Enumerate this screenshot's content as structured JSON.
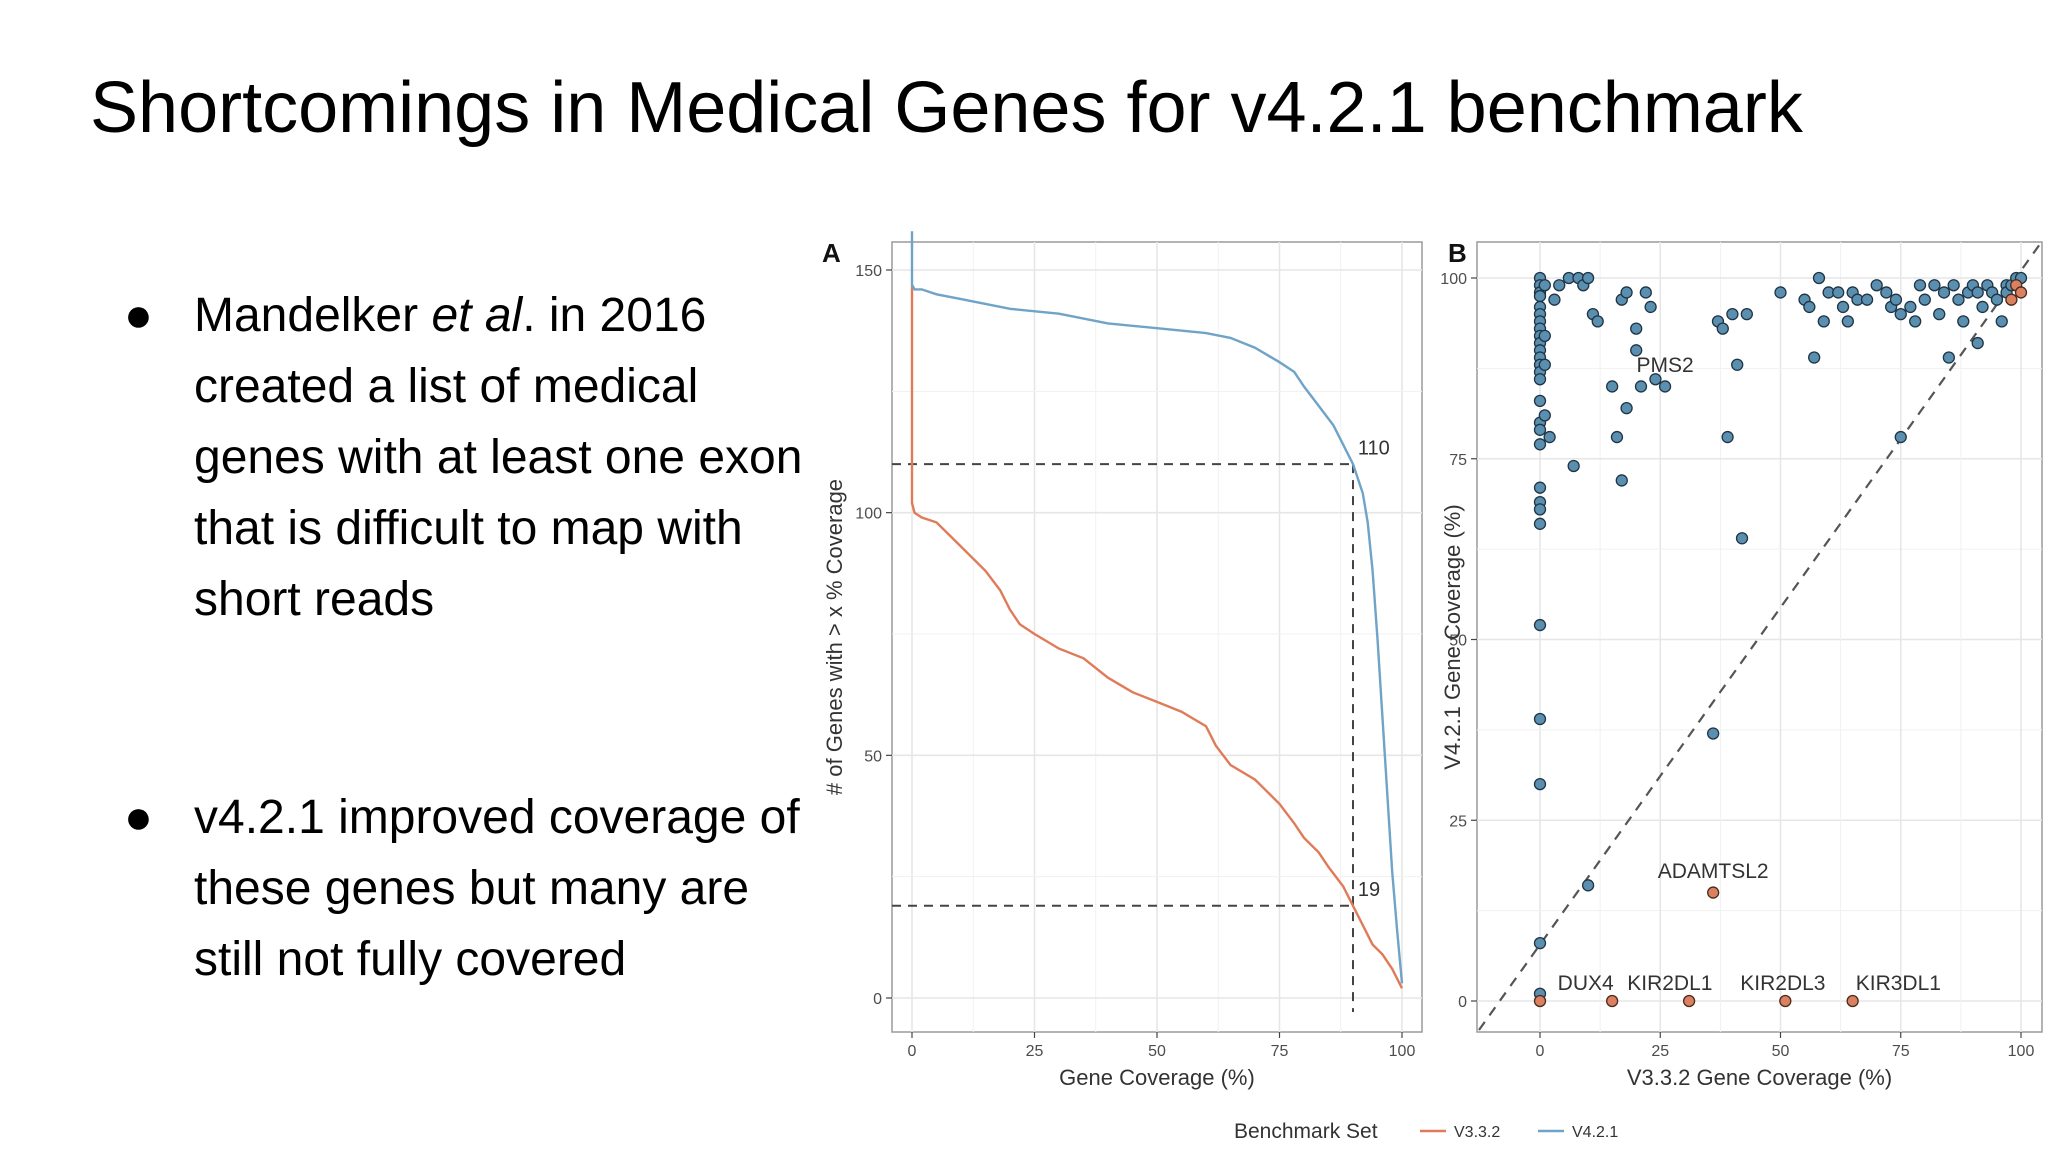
{
  "slide": {
    "title": "Shortcomings in Medical Genes for v4.2.1 benchmark",
    "bullets": [
      {
        "pre": "Mandelker ",
        "em": "et al",
        "post": ". in 2016 created a list of medical genes with at least one exon that is difficult to map with short reads"
      },
      {
        "pre": "v4.2.1 improved coverage of these genes but many are still not fully covered",
        "em": "",
        "post": ""
      }
    ]
  },
  "chart_data": [
    {
      "panel": "A",
      "type": "line",
      "xlabel": "Gene Coverage (%)",
      "ylabel": "# of Genes with > x % Coverage",
      "xlim": [
        0,
        100
      ],
      "ylim": [
        0,
        158
      ],
      "xticks": [
        0,
        25,
        50,
        75,
        100
      ],
      "yticks": [
        0,
        50,
        100,
        150
      ],
      "grid": true,
      "series": [
        {
          "name": "V3.3.2",
          "color": "#e07b5a",
          "x": [
            0,
            0,
            0.5,
            2,
            5,
            8,
            12,
            15,
            18,
            20,
            22,
            25,
            30,
            35,
            40,
            45,
            50,
            55,
            60,
            62,
            65,
            70,
            72,
            75,
            78,
            80,
            83,
            85,
            88,
            90,
            92,
            94,
            96,
            98,
            100
          ],
          "y": [
            147,
            102,
            100,
            99,
            98,
            95,
            91,
            88,
            84,
            80,
            77,
            75,
            72,
            70,
            66,
            63,
            61,
            59,
            56,
            52,
            48,
            45,
            43,
            40,
            36,
            33,
            30,
            27,
            23,
            19,
            15,
            11,
            9,
            6,
            2
          ]
        },
        {
          "name": "V4.2.1",
          "color": "#6fa3c8",
          "x": [
            0,
            0,
            0.5,
            2,
            5,
            10,
            20,
            30,
            40,
            50,
            60,
            65,
            70,
            75,
            78,
            80,
            83,
            86,
            88,
            90,
            92,
            93,
            94,
            95,
            96,
            97,
            98,
            99,
            100
          ],
          "y": [
            158,
            147,
            146,
            146,
            145,
            144,
            142,
            141,
            139,
            138,
            137,
            136,
            134,
            131,
            129,
            126,
            122,
            118,
            114,
            110,
            104,
            98,
            88,
            74,
            58,
            42,
            26,
            14,
            3
          ]
        }
      ],
      "annotations": [
        {
          "text": "110",
          "x": 91,
          "y": 112
        },
        {
          "text": "19",
          "x": 91,
          "y": 21
        }
      ],
      "reference_lines": [
        {
          "type": "h",
          "y": 110,
          "x_to": 90
        },
        {
          "type": "h",
          "y": 19,
          "x_to": 90
        },
        {
          "type": "v",
          "x": 90,
          "y_to": 110
        }
      ]
    },
    {
      "panel": "B",
      "type": "scatter",
      "xlabel": "V3.3.2 Gene Coverage (%)",
      "ylabel": "V4.2.1 Gene Coverage (%)",
      "xlim": [
        0,
        100
      ],
      "ylim": [
        0,
        100
      ],
      "xticks": [
        0,
        25,
        50,
        75,
        100
      ],
      "yticks": [
        0,
        25,
        50,
        75,
        100
      ],
      "grid": true,
      "diagonal": true,
      "point_colors": {
        "improved": "#5b8fb0",
        "unchanged": "#d98160"
      },
      "points": [
        [
          0,
          100
        ],
        [
          0,
          99
        ],
        [
          0,
          98
        ],
        [
          0,
          97.5
        ],
        [
          0,
          96
        ],
        [
          0,
          95
        ],
        [
          0,
          94
        ],
        [
          0,
          93
        ],
        [
          0,
          92
        ],
        [
          0,
          91
        ],
        [
          0,
          90
        ],
        [
          0,
          89
        ],
        [
          0,
          88
        ],
        [
          0,
          87
        ],
        [
          0,
          86
        ],
        [
          0,
          83
        ],
        [
          0,
          80
        ],
        [
          0,
          79
        ],
        [
          0,
          77
        ],
        [
          0,
          71
        ],
        [
          0,
          69
        ],
        [
          0,
          68
        ],
        [
          0,
          66
        ],
        [
          0,
          52
        ],
        [
          0,
          39
        ],
        [
          0,
          30
        ],
        [
          0,
          8
        ],
        [
          0,
          1
        ],
        [
          1,
          99
        ],
        [
          1,
          92
        ],
        [
          1,
          88
        ],
        [
          1,
          81
        ],
        [
          2,
          78
        ],
        [
          3,
          97
        ],
        [
          4,
          99
        ],
        [
          6,
          100
        ],
        [
          7,
          74
        ],
        [
          8,
          100
        ],
        [
          9,
          99
        ],
        [
          10,
          100
        ],
        [
          11,
          95
        ],
        [
          12,
          94
        ],
        [
          15,
          85
        ],
        [
          16,
          78
        ],
        [
          17,
          97
        ],
        [
          18,
          98
        ],
        [
          18,
          82
        ],
        [
          20,
          93
        ],
        [
          20,
          90
        ],
        [
          21,
          85
        ],
        [
          22,
          98
        ],
        [
          23,
          96
        ],
        [
          24,
          86
        ],
        [
          26,
          85
        ],
        [
          10,
          16
        ],
        [
          17,
          72
        ],
        [
          37,
          94
        ],
        [
          38,
          93
        ],
        [
          39,
          78
        ],
        [
          40,
          95
        ],
        [
          41,
          88
        ],
        [
          42,
          64
        ],
        [
          43,
          95
        ],
        [
          36,
          37
        ],
        [
          50,
          98
        ],
        [
          55,
          97
        ],
        [
          56,
          96
        ],
        [
          57,
          89
        ],
        [
          58,
          100
        ],
        [
          59,
          94
        ],
        [
          60,
          98
        ],
        [
          62,
          98
        ],
        [
          63,
          96
        ],
        [
          64,
          94
        ],
        [
          65,
          98
        ],
        [
          66,
          97
        ],
        [
          68,
          97
        ],
        [
          70,
          99
        ],
        [
          72,
          98
        ],
        [
          73,
          96
        ],
        [
          74,
          97
        ],
        [
          75,
          95
        ],
        [
          75,
          78
        ],
        [
          77,
          96
        ],
        [
          78,
          94
        ],
        [
          79,
          99
        ],
        [
          80,
          97
        ],
        [
          82,
          99
        ],
        [
          83,
          95
        ],
        [
          84,
          98
        ],
        [
          85,
          89
        ],
        [
          86,
          99
        ],
        [
          87,
          97
        ],
        [
          88,
          94
        ],
        [
          89,
          98
        ],
        [
          90,
          99
        ],
        [
          91,
          98
        ],
        [
          91,
          91
        ],
        [
          92,
          96
        ],
        [
          93,
          99
        ],
        [
          94,
          98
        ],
        [
          95,
          97
        ],
        [
          96,
          94
        ],
        [
          97,
          99
        ],
        [
          97,
          98
        ],
        [
          98,
          99
        ],
        [
          99,
          100
        ],
        [
          100,
          100
        ]
      ],
      "unchanged_points": [
        [
          0,
          0
        ],
        [
          15,
          0
        ],
        [
          31,
          0
        ],
        [
          51,
          0
        ],
        [
          65,
          0
        ],
        [
          36,
          15
        ],
        [
          99,
          99
        ],
        [
          100,
          98
        ],
        [
          98,
          97
        ]
      ],
      "labels": [
        {
          "text": "PMS2",
          "x": 26,
          "y": 88
        },
        {
          "text": "ADAMTSL2",
          "x": 36,
          "y": 18
        },
        {
          "text": "DUX4",
          "x": 9.5,
          "y": 2.5
        },
        {
          "text": "KIR2DL1",
          "x": 27,
          "y": 2.5
        },
        {
          "text": "KIR2DL3",
          "x": 50.5,
          "y": 2.5
        },
        {
          "text": "KIR3DL1",
          "x": 74.5,
          "y": 2.5
        }
      ]
    }
  ],
  "legend": {
    "title": "Benchmark Set",
    "items": [
      {
        "name": "V3.3.2",
        "color": "#e07b5a"
      },
      {
        "name": "V4.2.1",
        "color": "#6fa3c8"
      }
    ]
  }
}
